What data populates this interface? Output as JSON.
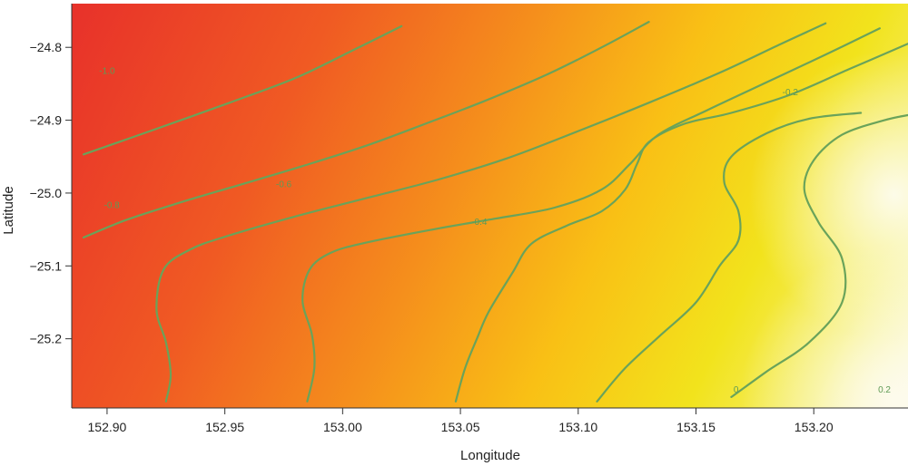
{
  "chart_data": {
    "type": "heatmap",
    "subtype": "filled contour map with labelled isolines",
    "xlabel": "Longitude",
    "ylabel": "Latitude",
    "xlim": [
      152.885,
      153.24
    ],
    "ylim": [
      -25.295,
      -24.74
    ],
    "x_ticks": [
      152.9,
      152.95,
      153.0,
      153.05,
      153.1,
      153.15,
      153.2
    ],
    "x_tick_labels": [
      "152.90",
      "152.95",
      "153.00",
      "153.05",
      "153.10",
      "153.15",
      "153.20"
    ],
    "y_ticks": [
      -24.8,
      -24.9,
      -25.0,
      -25.1,
      -25.2
    ],
    "y_tick_labels": [
      "−24.8",
      "−24.9",
      "−25.0",
      "−25.1",
      "−25.2"
    ],
    "grid": false,
    "colors": {
      "low": "#e8322a",
      "mid_low": "#f47a20",
      "mid": "#f9c015",
      "mid_high": "#f2ea18",
      "high": "#fdfbe8",
      "contour": "#6aa35a"
    },
    "contours": [
      {
        "level": -1.0,
        "label": "-1.0",
        "points": [
          [
            152.89,
            -24.947
          ],
          [
            152.92,
            -24.913
          ],
          [
            152.952,
            -24.876
          ],
          [
            152.98,
            -24.842
          ],
          [
            153.005,
            -24.803
          ],
          [
            153.025,
            -24.771
          ]
        ],
        "label_at": [
          152.9,
          -24.833
        ]
      },
      {
        "level": -0.8,
        "label": "-0.8",
        "points": [
          [
            152.89,
            -25.061
          ],
          [
            152.908,
            -25.037
          ],
          [
            152.93,
            -25.014
          ],
          [
            152.955,
            -24.99
          ],
          [
            152.983,
            -24.963
          ],
          [
            153.01,
            -24.935
          ],
          [
            153.035,
            -24.905
          ],
          [
            153.06,
            -24.874
          ],
          [
            153.087,
            -24.837
          ],
          [
            153.11,
            -24.8
          ],
          [
            153.13,
            -24.765
          ]
        ],
        "label_at": [
          152.902,
          -25.017
        ]
      },
      {
        "level": -0.6,
        "label": "-0.6",
        "points": [
          [
            152.925,
            -25.286
          ],
          [
            152.927,
            -25.25
          ],
          [
            152.925,
            -25.205
          ],
          [
            152.921,
            -25.16
          ],
          [
            152.924,
            -25.105
          ],
          [
            152.935,
            -25.078
          ],
          [
            152.95,
            -25.06
          ],
          [
            152.98,
            -25.032
          ],
          [
            153.01,
            -25.007
          ],
          [
            153.04,
            -24.982
          ],
          [
            153.07,
            -24.952
          ],
          [
            153.1,
            -24.915
          ],
          [
            153.13,
            -24.876
          ],
          [
            153.16,
            -24.835
          ],
          [
            153.185,
            -24.797
          ],
          [
            153.205,
            -24.767
          ]
        ],
        "label_at": [
          152.975,
          -24.988
        ]
      },
      {
        "level": -0.4,
        "label": "-0.4",
        "points": [
          [
            152.985,
            -25.286
          ],
          [
            152.988,
            -25.24
          ],
          [
            152.987,
            -25.195
          ],
          [
            152.983,
            -25.148
          ],
          [
            152.986,
            -25.105
          ],
          [
            152.995,
            -25.082
          ],
          [
            153.01,
            -25.068
          ],
          [
            153.04,
            -25.049
          ],
          [
            153.065,
            -25.035
          ],
          [
            153.09,
            -25.02
          ],
          [
            153.11,
            -24.995
          ],
          [
            153.122,
            -24.96
          ],
          [
            153.134,
            -24.92
          ],
          [
            153.155,
            -24.886
          ],
          [
            153.18,
            -24.848
          ],
          [
            153.205,
            -24.81
          ],
          [
            153.228,
            -24.774
          ]
        ],
        "label_at": [
          153.058,
          -25.04
        ]
      },
      {
        "level": -0.2,
        "label": "-0.2",
        "points": [
          [
            153.048,
            -25.286
          ],
          [
            153.052,
            -25.24
          ],
          [
            153.057,
            -25.2
          ],
          [
            153.062,
            -25.163
          ],
          [
            153.072,
            -25.11
          ],
          [
            153.08,
            -25.07
          ],
          [
            153.095,
            -25.045
          ],
          [
            153.11,
            -25.025
          ],
          [
            153.12,
            -24.995
          ],
          [
            153.125,
            -24.96
          ],
          [
            153.13,
            -24.93
          ],
          [
            153.145,
            -24.905
          ],
          [
            153.165,
            -24.89
          ],
          [
            153.19,
            -24.865
          ],
          [
            153.215,
            -24.83
          ],
          [
            153.24,
            -24.795
          ]
        ],
        "label_at": [
          153.19,
          -24.862
        ]
      },
      {
        "level": 0.0,
        "label": "0",
        "points": [
          [
            153.108,
            -25.286
          ],
          [
            153.12,
            -25.24
          ],
          [
            153.135,
            -25.195
          ],
          [
            153.15,
            -25.15
          ],
          [
            153.16,
            -25.1
          ],
          [
            153.168,
            -25.065
          ],
          [
            153.168,
            -25.025
          ],
          [
            153.162,
            -24.985
          ],
          [
            153.165,
            -24.95
          ],
          [
            153.18,
            -24.918
          ],
          [
            153.198,
            -24.898
          ],
          [
            153.22,
            -24.89
          ]
        ],
        "label_at": [
          153.167,
          -25.27
        ]
      },
      {
        "level": 0.2,
        "label": "0.2",
        "points": [
          [
            153.165,
            -25.28
          ],
          [
            153.18,
            -25.245
          ],
          [
            153.198,
            -25.205
          ],
          [
            153.212,
            -25.15
          ],
          [
            153.212,
            -25.09
          ],
          [
            153.202,
            -25.04
          ],
          [
            153.196,
            -24.995
          ],
          [
            153.2,
            -24.955
          ],
          [
            153.212,
            -24.92
          ],
          [
            153.23,
            -24.9
          ],
          [
            153.24,
            -24.893
          ]
        ],
        "label_at": [
          153.23,
          -25.27
        ]
      }
    ]
  }
}
